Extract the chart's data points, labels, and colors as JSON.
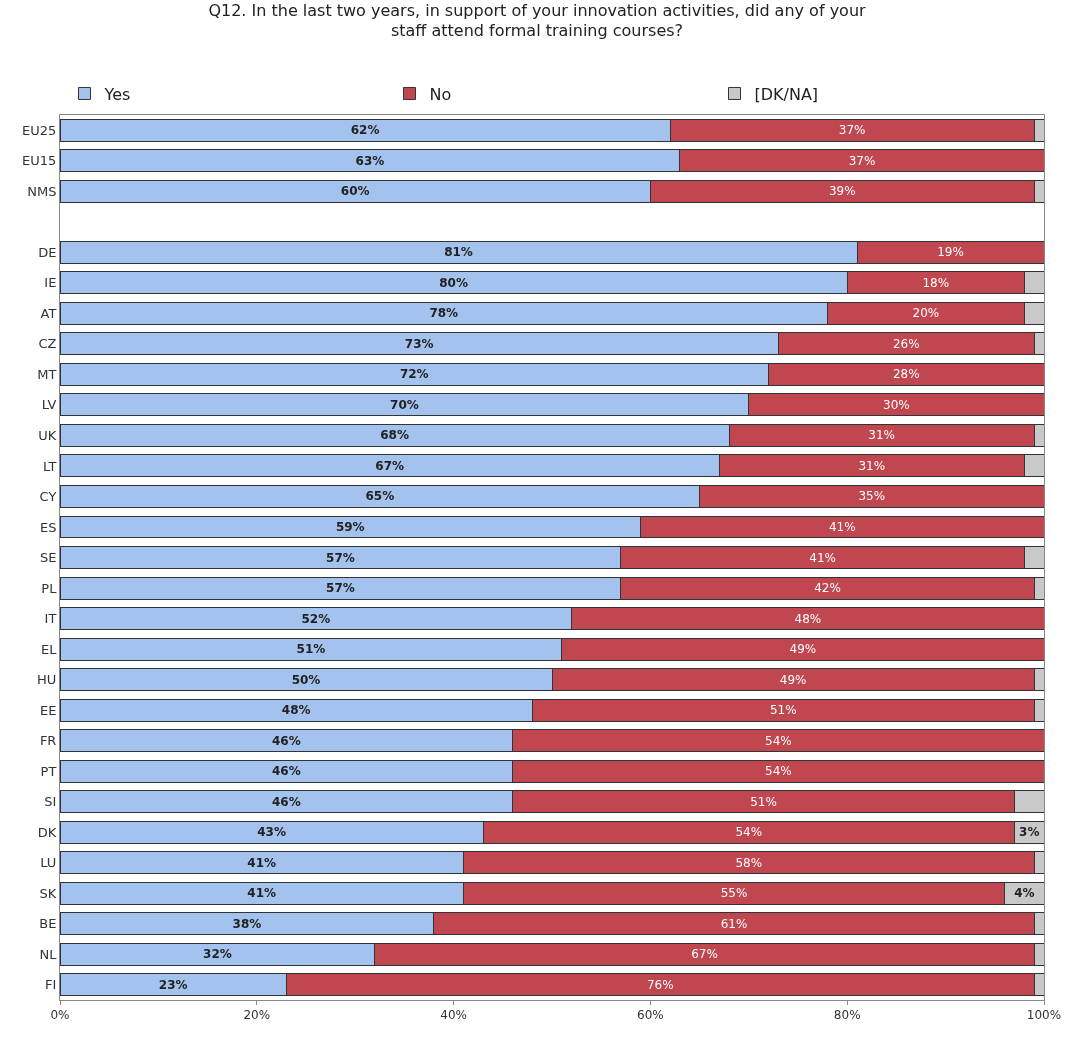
{
  "chart_data": {
    "type": "bar",
    "orientation": "horizontal",
    "stacked": true,
    "title": "Q12. In the last two years, in support of your innovation activities, did any of your staff attend formal training courses?",
    "categories": [
      "EU25",
      "EU15",
      "NMS",
      null,
      "DE",
      "IE",
      "AT",
      "CZ",
      "MT",
      "LV",
      "UK",
      "LT",
      "CY",
      "ES",
      "SE",
      "PL",
      "IT",
      "EL",
      "HU",
      "EE",
      "FR",
      "PT",
      "SI",
      "DK",
      "LU",
      "SK",
      "BE",
      "NL",
      "FI"
    ],
    "series": [
      {
        "name": "Yes",
        "color": "#a4c2ee",
        "values": [
          62,
          63,
          60,
          null,
          81,
          80,
          78,
          73,
          72,
          70,
          68,
          67,
          65,
          59,
          57,
          57,
          52,
          51,
          50,
          48,
          46,
          46,
          46,
          43,
          41,
          41,
          38,
          32,
          23
        ],
        "value_labels": [
          "62%",
          "63%",
          "60%",
          null,
          "81%",
          "80%",
          "78%",
          "73%",
          "72%",
          "70%",
          "68%",
          "67%",
          "65%",
          "59%",
          "57%",
          "57%",
          "52%",
          "51%",
          "50%",
          "48%",
          "46%",
          "46%",
          "46%",
          "43%",
          "41%",
          "41%",
          "38%",
          "32%",
          "23%"
        ]
      },
      {
        "name": "No",
        "color": "#c0474f",
        "values": [
          37,
          37,
          39,
          null,
          19,
          18,
          20,
          26,
          28,
          30,
          31,
          31,
          35,
          41,
          41,
          42,
          48,
          49,
          49,
          51,
          54,
          54,
          51,
          54,
          58,
          55,
          61,
          67,
          76
        ],
        "value_labels": [
          "37%",
          "37%",
          "39%",
          null,
          "19%",
          "18%",
          "20%",
          "26%",
          "28%",
          "30%",
          "31%",
          "31%",
          "35%",
          "41%",
          "41%",
          "42%",
          "48%",
          "49%",
          "49%",
          "51%",
          "54%",
          "54%",
          "51%",
          "54%",
          "58%",
          "55%",
          "61%",
          "67%",
          "76%"
        ]
      },
      {
        "name": "[DK/NA]",
        "color": "#c8c8c8",
        "values": [
          1,
          0,
          1,
          null,
          0,
          2,
          2,
          1,
          0,
          0,
          1,
          2,
          0,
          0,
          2,
          1,
          0,
          0,
          1,
          1,
          0,
          0,
          3,
          3,
          1,
          4,
          1,
          1,
          1
        ],
        "value_labels": [
          null,
          null,
          null,
          null,
          null,
          null,
          null,
          null,
          null,
          null,
          null,
          null,
          null,
          null,
          null,
          null,
          null,
          null,
          null,
          null,
          null,
          null,
          null,
          "3%",
          null,
          "4%",
          null,
          null,
          null
        ]
      }
    ],
    "xlim": [
      0,
      100
    ],
    "xticks": [
      {
        "value": 0,
        "label": "0%"
      },
      {
        "value": 20,
        "label": "20%"
      },
      {
        "value": 40,
        "label": "40%"
      },
      {
        "value": 60,
        "label": "60%"
      },
      {
        "value": 80,
        "label": "80%"
      },
      {
        "value": 100,
        "label": "100%"
      }
    ],
    "legend": "top"
  }
}
